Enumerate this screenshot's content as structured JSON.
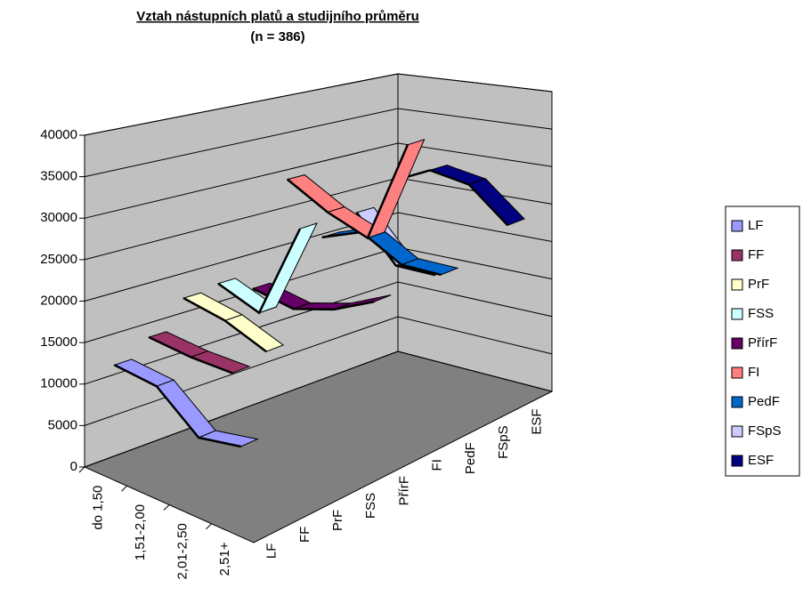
{
  "chart_data": {
    "type": "line3d",
    "title": "Vztah nástupních platů a studijního průměru",
    "subtitle": "(n = 386)",
    "categories": [
      "do 1,50",
      "1,51-2,00",
      "2,01-2,50",
      "2,51+"
    ],
    "series": [
      {
        "name": "LF",
        "color": "#9999ff",
        "values": [
          13000,
          12500,
          8500,
          9500
        ]
      },
      {
        "name": "FF",
        "color": "#993366",
        "values": [
          15000,
          14500,
          14500,
          null
        ]
      },
      {
        "name": "PrF",
        "color": "#ffffcc",
        "values": [
          18500,
          17500,
          15500,
          null
        ]
      },
      {
        "name": "FSS",
        "color": "#ccffff",
        "values": [
          19000,
          17000,
          29000,
          null
        ]
      },
      {
        "name": "PřírF",
        "color": "#660066",
        "values": [
          17000,
          16000,
          17500,
          20000
        ]
      },
      {
        "name": "FI",
        "color": "#ff8080",
        "values": [
          30000,
          27000,
          25000,
          38000
        ]
      },
      {
        "name": "PedF",
        "color": "#0066cc",
        "values": [
          21000,
          23000,
          20000,
          20000
        ]
      },
      {
        "name": "FSpS",
        "color": "#ccccff",
        "values": [
          23000,
          17000,
          17000,
          null
        ]
      },
      {
        "name": "ESF",
        "color": "#000080",
        "values": [
          26000,
          28500,
          27500,
          23000
        ]
      }
    ],
    "ylim": [
      0,
      40000
    ],
    "yticks": [
      0,
      5000,
      10000,
      15000,
      20000,
      25000,
      30000,
      35000,
      40000
    ],
    "grid": true,
    "legend": "right"
  }
}
